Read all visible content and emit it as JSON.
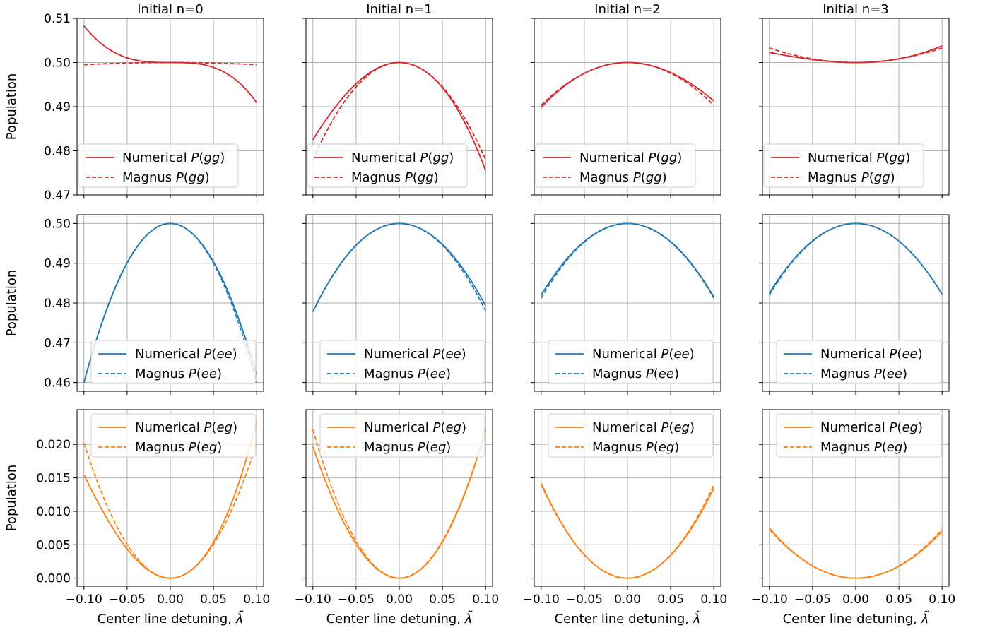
{
  "colors": {
    "gg": "#d62728",
    "ee": "#1f77b4",
    "eg": "#ff7f0e",
    "grid": "#b0b0b0"
  },
  "x_axis": {
    "label_prefix": "Center line detuning, ",
    "label_symbol": "λ̃",
    "ticks": [
      -0.1,
      -0.05,
      0.0,
      0.05,
      0.1
    ],
    "tick_labels": [
      "−0.10",
      "−0.05",
      "0.00",
      "0.05",
      "0.10"
    ],
    "xlim": [
      -0.108,
      0.108
    ]
  },
  "y_label": "Population",
  "columns": [
    "Initial n=0",
    "Initial n=1",
    "Initial n=2",
    "Initial n=3"
  ],
  "legend": {
    "gg": {
      "numerical_prefix": "Numerical ",
      "magnus_prefix": "Magnus ",
      "var": "gg"
    },
    "ee": {
      "numerical_prefix": "Numerical ",
      "magnus_prefix": "Magnus ",
      "var": "ee"
    },
    "eg": {
      "numerical_prefix": "Numerical ",
      "magnus_prefix": "Magnus ",
      "var": "eg"
    }
  },
  "chart_data": [
    {
      "type": "line",
      "title": "Initial n=0 / n=1 / n=2 / n=3",
      "row_variable": "P(gg)",
      "x": [
        -0.1,
        -0.05,
        0.0,
        0.05,
        0.1
      ],
      "ylabel": "Population",
      "xlabel": "Center line detuning, λ̃",
      "ylim": [
        0.47,
        0.51
      ],
      "yticks": [
        0.47,
        0.48,
        0.49,
        0.5,
        0.51
      ],
      "ytick_labels": [
        "0.47",
        "0.48",
        "0.49",
        "0.50",
        "0.51"
      ],
      "panels": [
        {
          "series": [
            {
              "name": "Numerical P(gg)",
              "values": [
                0.5083,
                0.5009,
                0.5,
                0.4991,
                0.4909
              ]
            },
            {
              "name": "Magnus P(gg)",
              "values": [
                0.4995,
                0.49996,
                0.5,
                0.49996,
                0.4995
              ]
            }
          ]
        },
        {
          "series": [
            {
              "name": "Numerical P(gg)",
              "values": [
                0.4825,
                0.4954,
                0.5,
                0.4942,
                0.4755
              ]
            },
            {
              "name": "Magnus P(gg)",
              "values": [
                0.478,
                0.4945,
                0.5,
                0.4945,
                0.478
              ]
            }
          ]
        },
        {
          "series": [
            {
              "name": "Numerical P(gg)",
              "values": [
                0.4898,
                0.4976,
                0.5,
                0.4978,
                0.4913
              ]
            },
            {
              "name": "Magnus P(gg)",
              "values": [
                0.4903,
                0.4975,
                0.5,
                0.4975,
                0.4903
              ]
            }
          ]
        },
        {
          "series": [
            {
              "name": "Numerical P(gg)",
              "values": [
                0.5023,
                0.5005,
                0.5,
                0.5009,
                0.5038
              ]
            },
            {
              "name": "Magnus P(gg)",
              "values": [
                0.5033,
                0.5008,
                0.5,
                0.5008,
                0.5033
              ]
            }
          ]
        }
      ]
    },
    {
      "type": "line",
      "row_variable": "P(ee)",
      "x": [
        -0.1,
        -0.05,
        0.0,
        0.05,
        0.1
      ],
      "ylabel": "Population",
      "xlabel": "Center line detuning, λ̃",
      "ylim": [
        0.4578,
        0.5022
      ],
      "yticks": [
        0.46,
        0.47,
        0.48,
        0.49,
        0.5
      ],
      "ytick_labels": [
        "0.46",
        "0.47",
        "0.48",
        "0.49",
        "0.50"
      ],
      "panels": [
        {
          "series": [
            {
              "name": "Numerical P(ee)",
              "values": [
                0.46,
                0.4895,
                0.5,
                0.4895,
                0.462
              ]
            },
            {
              "name": "Magnus P(ee)",
              "values": [
                0.46,
                0.4895,
                0.5,
                0.489,
                0.46
              ]
            }
          ]
        },
        {
          "series": [
            {
              "name": "Numerical P(ee)",
              "values": [
                0.4778,
                0.4945,
                0.5,
                0.4948,
                0.4793
              ]
            },
            {
              "name": "Magnus P(ee)",
              "values": [
                0.4778,
                0.4945,
                0.5,
                0.4945,
                0.478
              ]
            }
          ]
        },
        {
          "series": [
            {
              "name": "Numerical P(ee)",
              "values": [
                0.482,
                0.4955,
                0.5,
                0.4955,
                0.4815
              ]
            },
            {
              "name": "Magnus P(ee)",
              "values": [
                0.4812,
                0.4953,
                0.5,
                0.4953,
                0.4812
              ]
            }
          ]
        },
        {
          "series": [
            {
              "name": "Numerical P(ee)",
              "values": [
                0.4825,
                0.4956,
                0.5,
                0.4956,
                0.4822
              ]
            },
            {
              "name": "Magnus P(ee)",
              "values": [
                0.482,
                0.4955,
                0.5,
                0.4955,
                0.4822
              ]
            }
          ]
        }
      ]
    },
    {
      "type": "line",
      "row_variable": "P(eg)",
      "x": [
        -0.1,
        -0.05,
        0.0,
        0.05,
        0.1
      ],
      "ylabel": "Population",
      "xlabel": "Center line detuning, λ̃",
      "ylim": [
        -0.0012,
        0.0252
      ],
      "yticks": [
        0.0,
        0.005,
        0.01,
        0.015,
        0.02
      ],
      "ytick_labels": [
        "0.000",
        "0.005",
        "0.010",
        "0.015",
        "0.020"
      ],
      "panels": [
        {
          "series": [
            {
              "name": "Numerical P(eg)",
              "values": [
                0.0155,
                0.0045,
                0.0,
                0.0055,
                0.0235
              ]
            },
            {
              "name": "Magnus P(eg)",
              "values": [
                0.0202,
                0.0051,
                0.0,
                0.0051,
                0.0202
              ]
            }
          ]
        },
        {
          "series": [
            {
              "name": "Numerical P(eg)",
              "values": [
                0.0197,
                0.0054,
                0.0,
                0.0055,
                0.0223
              ]
            },
            {
              "name": "Magnus P(eg)",
              "values": [
                0.0222,
                0.0056,
                0.0,
                0.0056,
                0.0222
              ]
            }
          ]
        },
        {
          "series": [
            {
              "name": "Numerical P(eg)",
              "values": [
                0.0142,
                0.0036,
                0.0,
                0.0034,
                0.0135
              ]
            },
            {
              "name": "Magnus P(eg)",
              "values": [
                0.014,
                0.0035,
                0.0,
                0.0035,
                0.014
              ]
            }
          ]
        },
        {
          "series": [
            {
              "name": "Numerical P(eg)",
              "values": [
                0.0075,
                0.0019,
                0.0,
                0.0018,
                0.007
              ]
            },
            {
              "name": "Magnus P(eg)",
              "values": [
                0.0073,
                0.0018,
                0.0,
                0.0018,
                0.0073
              ]
            }
          ]
        }
      ]
    }
  ]
}
